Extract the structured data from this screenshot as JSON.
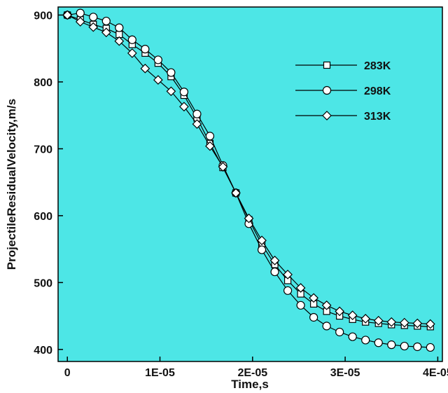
{
  "chart_data": {
    "type": "line",
    "xlabel": "Time,s",
    "ylabel": "ProjectileResidualVelocity,m/s",
    "xlim": [
      -1e-06,
      4.05e-05
    ],
    "ylim": [
      382,
      912
    ],
    "x_ticks": [
      {
        "value": 0,
        "label": "0"
      },
      {
        "value": 1e-05,
        "label": "1E-05"
      },
      {
        "value": 2e-05,
        "label": "2E-05"
      },
      {
        "value": 3e-05,
        "label": "3E-05"
      },
      {
        "value": 4e-05,
        "label": "4E-05"
      }
    ],
    "y_ticks": [
      {
        "value": 400,
        "label": "400"
      },
      {
        "value": 500,
        "label": "500"
      },
      {
        "value": 600,
        "label": "600"
      },
      {
        "value": 700,
        "label": "700"
      },
      {
        "value": 800,
        "label": "800"
      },
      {
        "value": 900,
        "label": "900"
      }
    ],
    "background_color": "#4de6e6",
    "line_color": "#000000",
    "marker_fill": "#ffffff",
    "legend_position": "top-right",
    "series": [
      {
        "name": "283K",
        "marker": "square",
        "x": [
          0,
          1.4e-06,
          2.8e-06,
          4.2e-06,
          5.6e-06,
          7e-06,
          8.4e-06,
          9.8e-06,
          1.12e-05,
          1.26e-05,
          1.4e-05,
          1.54e-05,
          1.68e-05,
          1.82e-05,
          1.96e-05,
          2.1e-05,
          2.24e-05,
          2.38e-05,
          2.52e-05,
          2.66e-05,
          2.8e-05,
          2.94e-05,
          3.08e-05,
          3.22e-05,
          3.36e-05,
          3.5e-05,
          3.64e-05,
          3.78e-05,
          3.92e-05
        ],
        "y": [
          900,
          893,
          886,
          880,
          871,
          856,
          843,
          828,
          808,
          780,
          746,
          708,
          672,
          634,
          594,
          557,
          527,
          503,
          483,
          468,
          457,
          450,
          445,
          441,
          439,
          437,
          436,
          435,
          434
        ]
      },
      {
        "name": "298K",
        "marker": "circle",
        "x": [
          0,
          1.4e-06,
          2.8e-06,
          4.2e-06,
          5.6e-06,
          7e-06,
          8.4e-06,
          9.8e-06,
          1.12e-05,
          1.26e-05,
          1.4e-05,
          1.54e-05,
          1.68e-05,
          1.82e-05,
          1.96e-05,
          2.1e-05,
          2.24e-05,
          2.38e-05,
          2.52e-05,
          2.66e-05,
          2.8e-05,
          2.94e-05,
          3.08e-05,
          3.22e-05,
          3.36e-05,
          3.5e-05,
          3.64e-05,
          3.78e-05,
          3.92e-05
        ],
        "y": [
          900,
          903,
          897,
          891,
          881,
          863,
          849,
          833,
          814,
          785,
          752,
          719,
          675,
          634,
          588,
          549,
          516,
          488,
          466,
          448,
          435,
          426,
          419,
          414,
          410,
          407,
          405,
          404,
          403
        ]
      },
      {
        "name": "313K",
        "marker": "diamond",
        "x": [
          0,
          1.4e-06,
          2.8e-06,
          4.2e-06,
          5.6e-06,
          7e-06,
          8.4e-06,
          9.8e-06,
          1.12e-05,
          1.26e-05,
          1.4e-05,
          1.54e-05,
          1.68e-05,
          1.82e-05,
          1.96e-05,
          2.1e-05,
          2.24e-05,
          2.38e-05,
          2.52e-05,
          2.66e-05,
          2.8e-05,
          2.94e-05,
          3.08e-05,
          3.22e-05,
          3.36e-05,
          3.5e-05,
          3.64e-05,
          3.78e-05,
          3.92e-05
        ],
        "y": [
          900,
          890,
          882,
          874,
          861,
          843,
          820,
          803,
          786,
          763,
          737,
          704,
          673,
          634,
          596,
          563,
          533,
          512,
          492,
          477,
          466,
          457,
          451,
          446,
          443,
          441,
          440,
          439,
          438
        ]
      }
    ]
  }
}
